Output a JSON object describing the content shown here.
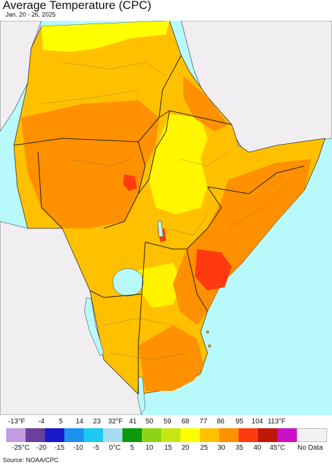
{
  "title": "Average Temperature (CPC)",
  "date_range": "Jan. 20 - 26, 2025",
  "source": "Source: NOAA/CPC",
  "legend": {
    "fahrenheit_labels": [
      "-13°F",
      "-4",
      "5",
      "14",
      "23",
      "32°F",
      "41",
      "50",
      "59",
      "68",
      "77",
      "86",
      "95",
      "104",
      "113°F"
    ],
    "celsius_labels": [
      "-25°C",
      "-20",
      "-15",
      "-10",
      "-5",
      "0°C",
      "5",
      "10",
      "15",
      "20",
      "25",
      "30",
      "35",
      "40",
      "45°C"
    ],
    "colors": [
      "#c39be0",
      "#6a3fa0",
      "#1a1acc",
      "#1e90f0",
      "#1ec8f0",
      "#a8dcf0",
      "#0a9a0a",
      "#8cd414",
      "#c8e614",
      "#ffff00",
      "#ffc000",
      "#ff9000",
      "#ff3a10",
      "#c01808",
      "#cc10c8",
      "#f080c8"
    ],
    "no_data_label": "No Data",
    "no_data_color": "#f3f0f3"
  },
  "map_colors": {
    "sea": "#b8fafc",
    "land_outside": "#f0eef0",
    "warm_yellow": "#ffff00",
    "orange_light": "#ffc000",
    "orange": "#ff9000",
    "red": "#ff3a10",
    "lake": "#b8fafc"
  }
}
